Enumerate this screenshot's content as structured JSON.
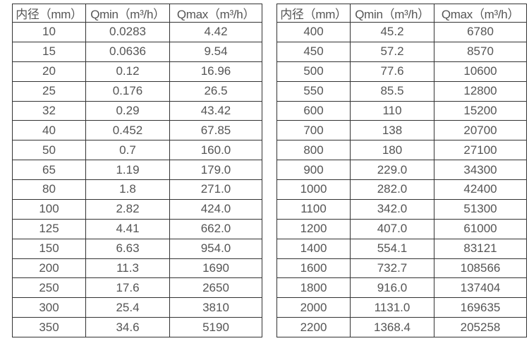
{
  "colors": {
    "background": "#ffffff",
    "border": "#333333",
    "text": "#555555"
  },
  "tables": [
    {
      "name": "flow-table-small-diameters",
      "headers": [
        "内径（mm）",
        "Qmin（m³/h）",
        "Qmax（m³/h）"
      ],
      "rows": [
        [
          "10",
          "0.0283",
          "4.42"
        ],
        [
          "15",
          "0.0636",
          "9.54"
        ],
        [
          "20",
          "0.12",
          "16.96"
        ],
        [
          "25",
          "0.176",
          "26.5"
        ],
        [
          "32",
          "0.29",
          "43.42"
        ],
        [
          "40",
          "0.452",
          "67.85"
        ],
        [
          "50",
          "0.7",
          "160.0"
        ],
        [
          "65",
          "1.19",
          "179.0"
        ],
        [
          "80",
          "1.8",
          "271.0"
        ],
        [
          "100",
          "2.82",
          "424.0"
        ],
        [
          "125",
          "4.41",
          "662.0"
        ],
        [
          "150",
          "6.63",
          "954.0"
        ],
        [
          "200",
          "11.3",
          "1690"
        ],
        [
          "250",
          "17.6",
          "2650"
        ],
        [
          "300",
          "25.4",
          "3810"
        ],
        [
          "350",
          "34.6",
          "5190"
        ]
      ]
    },
    {
      "name": "flow-table-large-diameters",
      "headers": [
        "内径（mm）",
        "Qmin（m³/h）",
        "Qmax（m³/h）"
      ],
      "rows": [
        [
          "400",
          "45.2",
          "6780"
        ],
        [
          "450",
          "57.2",
          "8570"
        ],
        [
          "500",
          "77.6",
          "10600"
        ],
        [
          "550",
          "85.5",
          "12800"
        ],
        [
          "600",
          "110",
          "15200"
        ],
        [
          "700",
          "138",
          "20700"
        ],
        [
          "800",
          "180",
          "27100"
        ],
        [
          "900",
          "229.0",
          "34300"
        ],
        [
          "1000",
          "282.0",
          "42400"
        ],
        [
          "1100",
          "342.0",
          "51300"
        ],
        [
          "1200",
          "407.0",
          "61000"
        ],
        [
          "1400",
          "554.1",
          "83121"
        ],
        [
          "1600",
          "732.7",
          "108566"
        ],
        [
          "1800",
          "916.0",
          "137404"
        ],
        [
          "2000",
          "1131.0",
          "169635"
        ],
        [
          "2200",
          "1368.4",
          "205258"
        ]
      ]
    }
  ]
}
